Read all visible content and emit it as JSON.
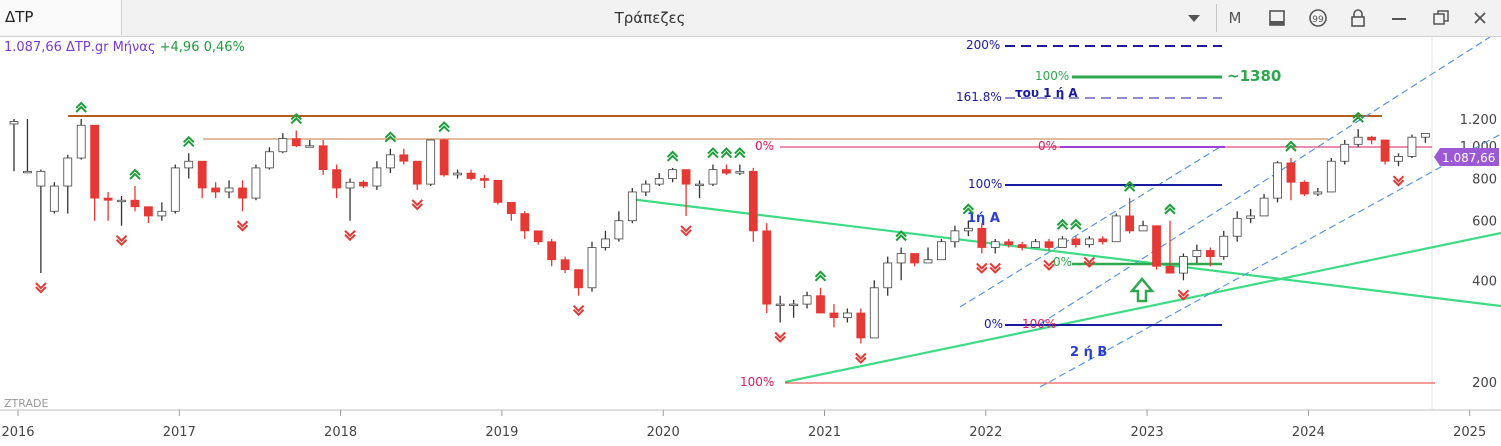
{
  "window": {
    "symbol": "ΔΤΡ",
    "title": "Τράπεζες",
    "period_button": "M",
    "icons": [
      "dropdown-arrow-icon",
      "period-button",
      "panel-icon",
      "quote-icon",
      "lock-icon",
      "minimize-icon",
      "restore-icon",
      "close-icon"
    ]
  },
  "info": {
    "price": "1.087,66",
    "name": "ΔΤΡ.gr Μήνας",
    "change": "+4,96",
    "change_pct": "0,46%"
  },
  "watermark": "ZTRADE",
  "colors": {
    "up": "#ffffff",
    "down": "#e53935",
    "wick": "#333333",
    "fib_red": "#d81b60",
    "fib_navy": "#1a1aa0",
    "green_line": "#3ddc84",
    "orange_line": "#b85c1c",
    "channel": "#4a90e2",
    "current": "#9b59d6"
  },
  "chart_data": {
    "type": "candlestick",
    "x_axis": {
      "ticks": [
        "2016",
        "2017",
        "2018",
        "2019",
        "2020",
        "2021",
        "2022",
        "2023",
        "2024",
        "2025"
      ]
    },
    "y_axis": {
      "ticks": [
        200,
        400,
        600,
        800,
        1000,
        1200
      ],
      "labels": [
        "200",
        "400",
        "600",
        "800",
        "1.000",
        "1.200"
      ],
      "range": [
        120,
        1380
      ],
      "scale": "log"
    },
    "last_price_label": "1.087,66",
    "candles": [
      [
        1160,
        1180,
        1200,
        840
      ],
      [
        840,
        840,
        1200,
        840
      ],
      [
        760,
        840,
        850,
        420
      ],
      [
        640,
        760,
        780,
        630
      ],
      [
        760,
        920,
        940,
        630
      ],
      [
        920,
        1150,
        1200,
        910
      ],
      [
        1150,
        700,
        1150,
        600
      ],
      [
        700,
        690,
        730,
        600
      ],
      [
        690,
        690,
        710,
        580
      ],
      [
        690,
        660,
        760,
        640
      ],
      [
        660,
        620,
        660,
        590
      ],
      [
        620,
        640,
        680,
        600
      ],
      [
        640,
        860,
        880,
        630
      ],
      [
        860,
        900,
        950,
        800
      ],
      [
        900,
        750,
        900,
        700
      ],
      [
        750,
        730,
        780,
        700
      ],
      [
        730,
        750,
        790,
        700
      ],
      [
        750,
        700,
        790,
        640
      ],
      [
        700,
        860,
        880,
        690
      ],
      [
        860,
        960,
        990,
        850
      ],
      [
        960,
        1050,
        1090,
        950
      ],
      [
        1050,
        1000,
        1110,
        990
      ],
      [
        1000,
        1000,
        1040,
        990
      ],
      [
        1000,
        850,
        1040,
        820
      ],
      [
        850,
        750,
        880,
        700
      ],
      [
        750,
        780,
        800,
        600
      ],
      [
        780,
        760,
        790,
        750
      ],
      [
        760,
        860,
        900,
        740
      ],
      [
        860,
        940,
        980,
        830
      ],
      [
        940,
        900,
        980,
        880
      ],
      [
        900,
        770,
        900,
        740
      ],
      [
        770,
        1040,
        1040,
        760
      ],
      [
        1040,
        820,
        1050,
        810
      ],
      [
        820,
        830,
        850,
        800
      ],
      [
        830,
        800,
        850,
        790
      ],
      [
        800,
        790,
        820,
        750
      ],
      [
        790,
        680,
        790,
        670
      ],
      [
        680,
        630,
        680,
        600
      ],
      [
        630,
        560,
        640,
        530
      ],
      [
        560,
        520,
        560,
        510
      ],
      [
        520,
        460,
        530,
        440
      ],
      [
        460,
        430,
        470,
        420
      ],
      [
        430,
        380,
        430,
        360
      ],
      [
        380,
        500,
        520,
        370
      ],
      [
        500,
        530,
        560,
        490
      ],
      [
        530,
        600,
        640,
        520
      ],
      [
        600,
        730,
        750,
        590
      ],
      [
        730,
        770,
        790,
        710
      ],
      [
        770,
        800,
        830,
        760
      ],
      [
        800,
        850,
        860,
        780
      ],
      [
        850,
        770,
        850,
        620
      ],
      [
        770,
        770,
        790,
        700
      ],
      [
        770,
        850,
        880,
        760
      ],
      [
        850,
        830,
        880,
        820
      ],
      [
        830,
        840,
        880,
        820
      ],
      [
        840,
        560,
        860,
        520
      ],
      [
        560,
        340,
        590,
        320
      ],
      [
        340,
        340,
        360,
        300
      ],
      [
        340,
        340,
        350,
        310
      ],
      [
        340,
        360,
        370,
        330
      ],
      [
        360,
        320,
        380,
        320
      ],
      [
        320,
        310,
        340,
        290
      ],
      [
        310,
        320,
        330,
        300
      ],
      [
        320,
        270,
        330,
        260
      ],
      [
        270,
        380,
        400,
        270
      ],
      [
        380,
        450,
        470,
        360
      ],
      [
        450,
        480,
        500,
        400
      ],
      [
        480,
        450,
        480,
        440
      ],
      [
        450,
        460,
        500,
        450
      ],
      [
        460,
        520,
        530,
        460
      ],
      [
        520,
        560,
        580,
        500
      ],
      [
        560,
        570,
        600,
        540
      ],
      [
        570,
        500,
        590,
        480
      ],
      [
        500,
        520,
        530,
        480
      ],
      [
        520,
        510,
        530,
        500
      ],
      [
        510,
        500,
        520,
        490
      ],
      [
        500,
        520,
        530,
        500
      ],
      [
        520,
        500,
        530,
        490
      ],
      [
        500,
        530,
        540,
        500
      ],
      [
        530,
        510,
        540,
        500
      ],
      [
        510,
        530,
        540,
        500
      ],
      [
        530,
        520,
        540,
        510
      ],
      [
        520,
        620,
        630,
        520
      ],
      [
        620,
        560,
        700,
        550
      ],
      [
        560,
        580,
        600,
        560
      ],
      [
        580,
        440,
        580,
        430
      ],
      [
        440,
        420,
        600,
        420
      ],
      [
        420,
        470,
        480,
        400
      ],
      [
        470,
        490,
        510,
        450
      ],
      [
        490,
        470,
        500,
        440
      ],
      [
        470,
        540,
        560,
        460
      ],
      [
        540,
        610,
        640,
        520
      ],
      [
        610,
        620,
        650,
        590
      ],
      [
        620,
        700,
        720,
        620
      ],
      [
        700,
        890,
        900,
        680
      ],
      [
        890,
        780,
        920,
        690
      ],
      [
        780,
        720,
        790,
        710
      ],
      [
        720,
        730,
        750,
        710
      ],
      [
        730,
        900,
        920,
        730
      ],
      [
        900,
        1010,
        1040,
        880
      ],
      [
        1010,
        1060,
        1120,
        990
      ],
      [
        1060,
        1040,
        1070,
        1010
      ],
      [
        1040,
        900,
        1040,
        880
      ],
      [
        900,
        930,
        950,
        870
      ],
      [
        930,
        1060,
        1080,
        920
      ],
      [
        1060,
        1087.66,
        1090,
        1020
      ]
    ]
  }
}
